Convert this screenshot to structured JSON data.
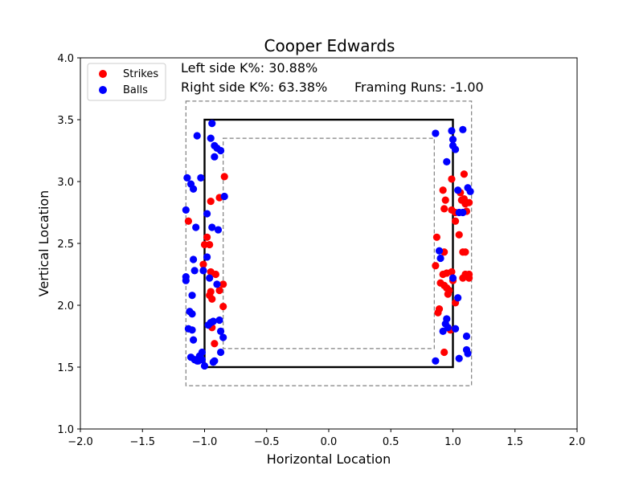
{
  "chart_data": {
    "type": "scatter",
    "title": "Cooper Edwards",
    "xlabel": "Horizontal Location",
    "ylabel": "Vertical Location",
    "xlim": [
      -2.0,
      2.0
    ],
    "ylim": [
      1.0,
      4.0
    ],
    "xticks": [
      "−2.0",
      "−1.5",
      "−1.0",
      "−0.5",
      "0.0",
      "0.5",
      "1.0",
      "1.5",
      "2.0"
    ],
    "yticks": [
      "1.0",
      "1.5",
      "2.0",
      "2.5",
      "3.0",
      "3.5",
      "4.0"
    ],
    "grid": false,
    "legend_position": "top-left",
    "annotations": {
      "left_k": "Left side K%: 30.88%",
      "right_k": "Right side K%: 63.38%",
      "framing_runs": "Framing Runs: -1.00"
    },
    "zones": {
      "strike_zone": {
        "x": [
          -1.0,
          1.0
        ],
        "y": [
          1.5,
          3.5
        ]
      },
      "outer_zone": {
        "x": [
          -1.15,
          1.15
        ],
        "y": [
          1.35,
          3.65
        ]
      },
      "inner_zone": {
        "x": [
          -0.85,
          0.85
        ],
        "y": [
          1.65,
          3.35
        ]
      }
    },
    "colors": {
      "strikes": "#ff0000",
      "balls": "#0000ff",
      "zone": "#000000",
      "shadow": "#808080"
    },
    "series": [
      {
        "name": "Strikes",
        "color": "#ff0000",
        "points": [
          [
            -1.13,
            2.68
          ],
          [
            -0.98,
            2.55
          ],
          [
            -1.0,
            2.49
          ],
          [
            -0.96,
            2.49
          ],
          [
            -1.01,
            2.33
          ],
          [
            -0.95,
            2.84
          ],
          [
            -0.88,
            2.87
          ],
          [
            -0.84,
            3.04
          ],
          [
            -0.95,
            2.27
          ],
          [
            -0.91,
            2.25
          ],
          [
            -0.95,
            2.11
          ],
          [
            -0.96,
            2.08
          ],
          [
            -0.94,
            2.05
          ],
          [
            -0.88,
            2.12
          ],
          [
            -0.85,
            2.17
          ],
          [
            -0.85,
            1.99
          ],
          [
            -0.94,
            1.82
          ],
          [
            -0.92,
            1.69
          ],
          [
            0.87,
            2.55
          ],
          [
            0.86,
            2.32
          ],
          [
            0.92,
            2.93
          ],
          [
            0.94,
            2.85
          ],
          [
            0.93,
            2.78
          ],
          [
            0.99,
            3.02
          ],
          [
            0.99,
            2.77
          ],
          [
            1.02,
            2.75
          ],
          [
            1.02,
            2.68
          ],
          [
            0.93,
            2.43
          ],
          [
            0.92,
            2.25
          ],
          [
            0.95,
            2.26
          ],
          [
            0.99,
            2.27
          ],
          [
            0.9,
            2.18
          ],
          [
            0.93,
            2.16
          ],
          [
            0.95,
            2.14
          ],
          [
            0.97,
            2.12
          ],
          [
            0.96,
            2.09
          ],
          [
            1.0,
            2.2
          ],
          [
            0.89,
            1.97
          ],
          [
            0.88,
            1.94
          ],
          [
            0.98,
            1.8
          ],
          [
            0.93,
            1.62
          ],
          [
            1.02,
            2.02
          ],
          [
            1.05,
            2.57
          ],
          [
            1.08,
            2.43
          ],
          [
            1.1,
            2.43
          ],
          [
            1.06,
            2.91
          ],
          [
            1.09,
            2.86
          ],
          [
            1.07,
            2.85
          ],
          [
            1.1,
            2.82
          ],
          [
            1.13,
            2.83
          ],
          [
            1.09,
            3.06
          ],
          [
            1.11,
            2.76
          ],
          [
            1.08,
            2.22
          ],
          [
            1.1,
            2.25
          ],
          [
            1.13,
            2.25
          ],
          [
            1.13,
            2.22
          ]
        ]
      },
      {
        "name": "Balls",
        "color": "#0000ff",
        "points": [
          [
            -1.06,
            3.37
          ],
          [
            -1.14,
            3.03
          ],
          [
            -1.11,
            2.98
          ],
          [
            -1.09,
            2.94
          ],
          [
            -1.15,
            2.77
          ],
          [
            -1.07,
            2.63
          ],
          [
            -1.03,
            3.03
          ],
          [
            -0.98,
            2.74
          ],
          [
            -0.94,
            3.47
          ],
          [
            -0.95,
            3.35
          ],
          [
            -0.92,
            3.29
          ],
          [
            -0.9,
            3.27
          ],
          [
            -0.87,
            3.25
          ],
          [
            -0.92,
            3.2
          ],
          [
            -0.84,
            2.88
          ],
          [
            -0.94,
            2.63
          ],
          [
            -0.89,
            2.61
          ],
          [
            -0.98,
            2.39
          ],
          [
            -1.01,
            2.28
          ],
          [
            -0.96,
            2.22
          ],
          [
            -0.9,
            2.17
          ],
          [
            -1.15,
            2.23
          ],
          [
            -1.15,
            2.2
          ],
          [
            -1.09,
            2.37
          ],
          [
            -1.08,
            2.28
          ],
          [
            -1.1,
            2.08
          ],
          [
            -1.12,
            1.95
          ],
          [
            -1.1,
            1.93
          ],
          [
            -1.13,
            1.81
          ],
          [
            -1.1,
            1.8
          ],
          [
            -1.09,
            1.72
          ],
          [
            -1.11,
            1.58
          ],
          [
            -1.08,
            1.56
          ],
          [
            -1.06,
            1.55
          ],
          [
            -1.05,
            1.55
          ],
          [
            -1.02,
            1.56
          ],
          [
            -1.04,
            1.59
          ],
          [
            -1.02,
            1.62
          ],
          [
            -1.0,
            1.51
          ],
          [
            -0.93,
            1.54
          ],
          [
            -0.92,
            1.55
          ],
          [
            -0.95,
            1.86
          ],
          [
            -0.97,
            1.84
          ],
          [
            -0.93,
            1.87
          ],
          [
            -0.88,
            1.88
          ],
          [
            -0.87,
            1.79
          ],
          [
            -0.85,
            1.74
          ],
          [
            -0.87,
            1.62
          ],
          [
            0.86,
            3.39
          ],
          [
            0.95,
            3.16
          ],
          [
            0.99,
            3.41
          ],
          [
            1.0,
            3.34
          ],
          [
            1.0,
            3.29
          ],
          [
            1.02,
            3.26
          ],
          [
            1.08,
            3.42
          ],
          [
            1.04,
            2.93
          ],
          [
            1.12,
            2.95
          ],
          [
            1.14,
            2.92
          ],
          [
            1.05,
            2.75
          ],
          [
            1.08,
            2.75
          ],
          [
            0.89,
            2.44
          ],
          [
            0.9,
            2.38
          ],
          [
            1.0,
            2.22
          ],
          [
            1.04,
            2.06
          ],
          [
            0.95,
            1.89
          ],
          [
            0.94,
            1.85
          ],
          [
            0.96,
            1.82
          ],
          [
            0.92,
            1.79
          ],
          [
            1.02,
            1.81
          ],
          [
            0.86,
            1.55
          ],
          [
            1.05,
            1.57
          ],
          [
            1.11,
            1.75
          ],
          [
            1.11,
            1.64
          ],
          [
            1.12,
            1.61
          ]
        ]
      }
    ]
  }
}
